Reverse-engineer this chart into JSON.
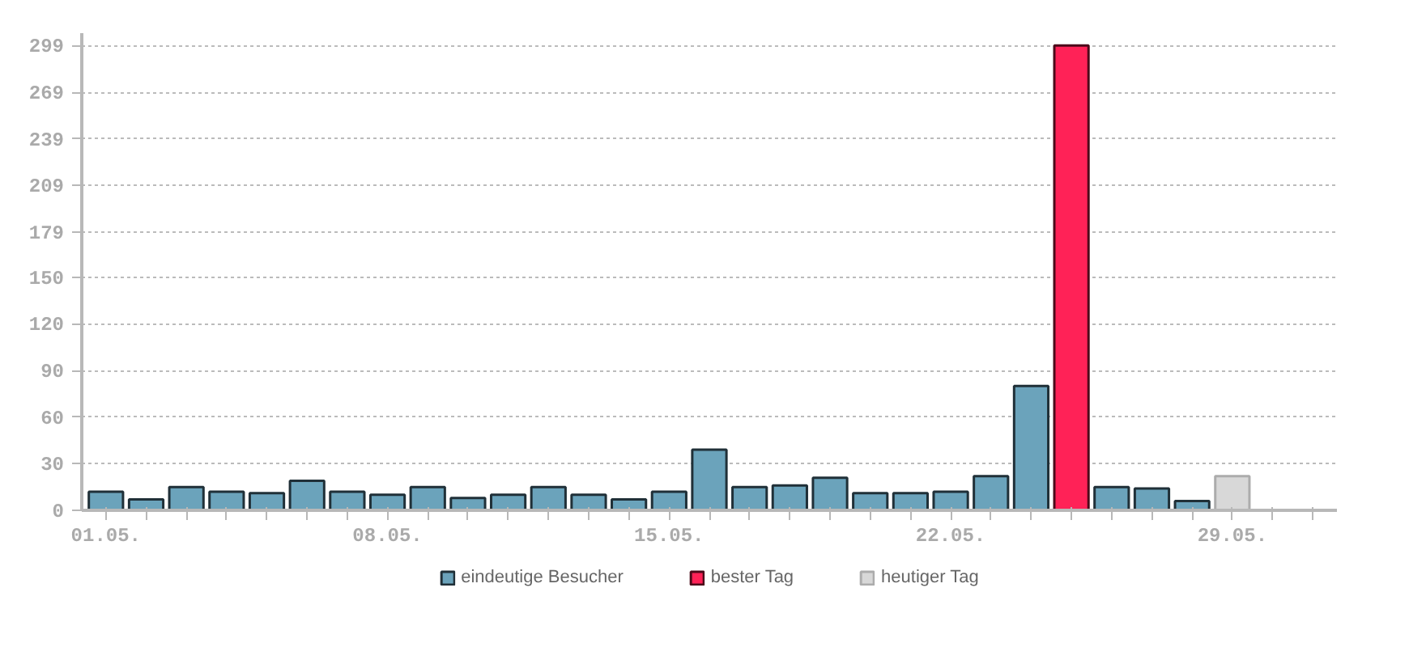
{
  "chart_data": {
    "type": "bar",
    "categories": [
      "01.05.",
      null,
      null,
      null,
      null,
      null,
      null,
      "08.05.",
      null,
      null,
      null,
      null,
      null,
      null,
      "15.05.",
      null,
      null,
      null,
      null,
      null,
      null,
      "22.05.",
      null,
      null,
      null,
      null,
      null,
      null,
      "29.05.",
      null,
      null
    ],
    "series": [
      {
        "name": "eindeutige Besucher",
        "color": "#6ba3bb",
        "values": [
          12,
          7,
          15,
          12,
          11,
          19,
          12,
          10,
          15,
          8,
          10,
          15,
          10,
          7,
          12,
          39,
          15,
          16,
          21,
          11,
          11,
          12,
          22,
          80,
          null,
          15,
          14,
          6,
          null,
          null,
          null
        ]
      },
      {
        "name": "bester Tag",
        "color": "#ff2257",
        "values": [
          null,
          null,
          null,
          null,
          null,
          null,
          null,
          null,
          null,
          null,
          null,
          null,
          null,
          null,
          null,
          null,
          null,
          null,
          null,
          null,
          null,
          null,
          null,
          null,
          299,
          null,
          null,
          null,
          null,
          null,
          null
        ]
      },
      {
        "name": "heutiger Tag",
        "color": "#d8d8d8",
        "values": [
          null,
          null,
          null,
          null,
          null,
          null,
          null,
          null,
          null,
          null,
          null,
          null,
          null,
          null,
          null,
          null,
          null,
          null,
          null,
          null,
          null,
          null,
          null,
          null,
          null,
          null,
          null,
          null,
          22,
          null,
          null
        ]
      }
    ],
    "ylim": [
      0,
      307
    ],
    "yticks": [
      0,
      30,
      60,
      90,
      120,
      150,
      179,
      209,
      239,
      269,
      299
    ],
    "grid": "y",
    "legend": "bottom"
  }
}
